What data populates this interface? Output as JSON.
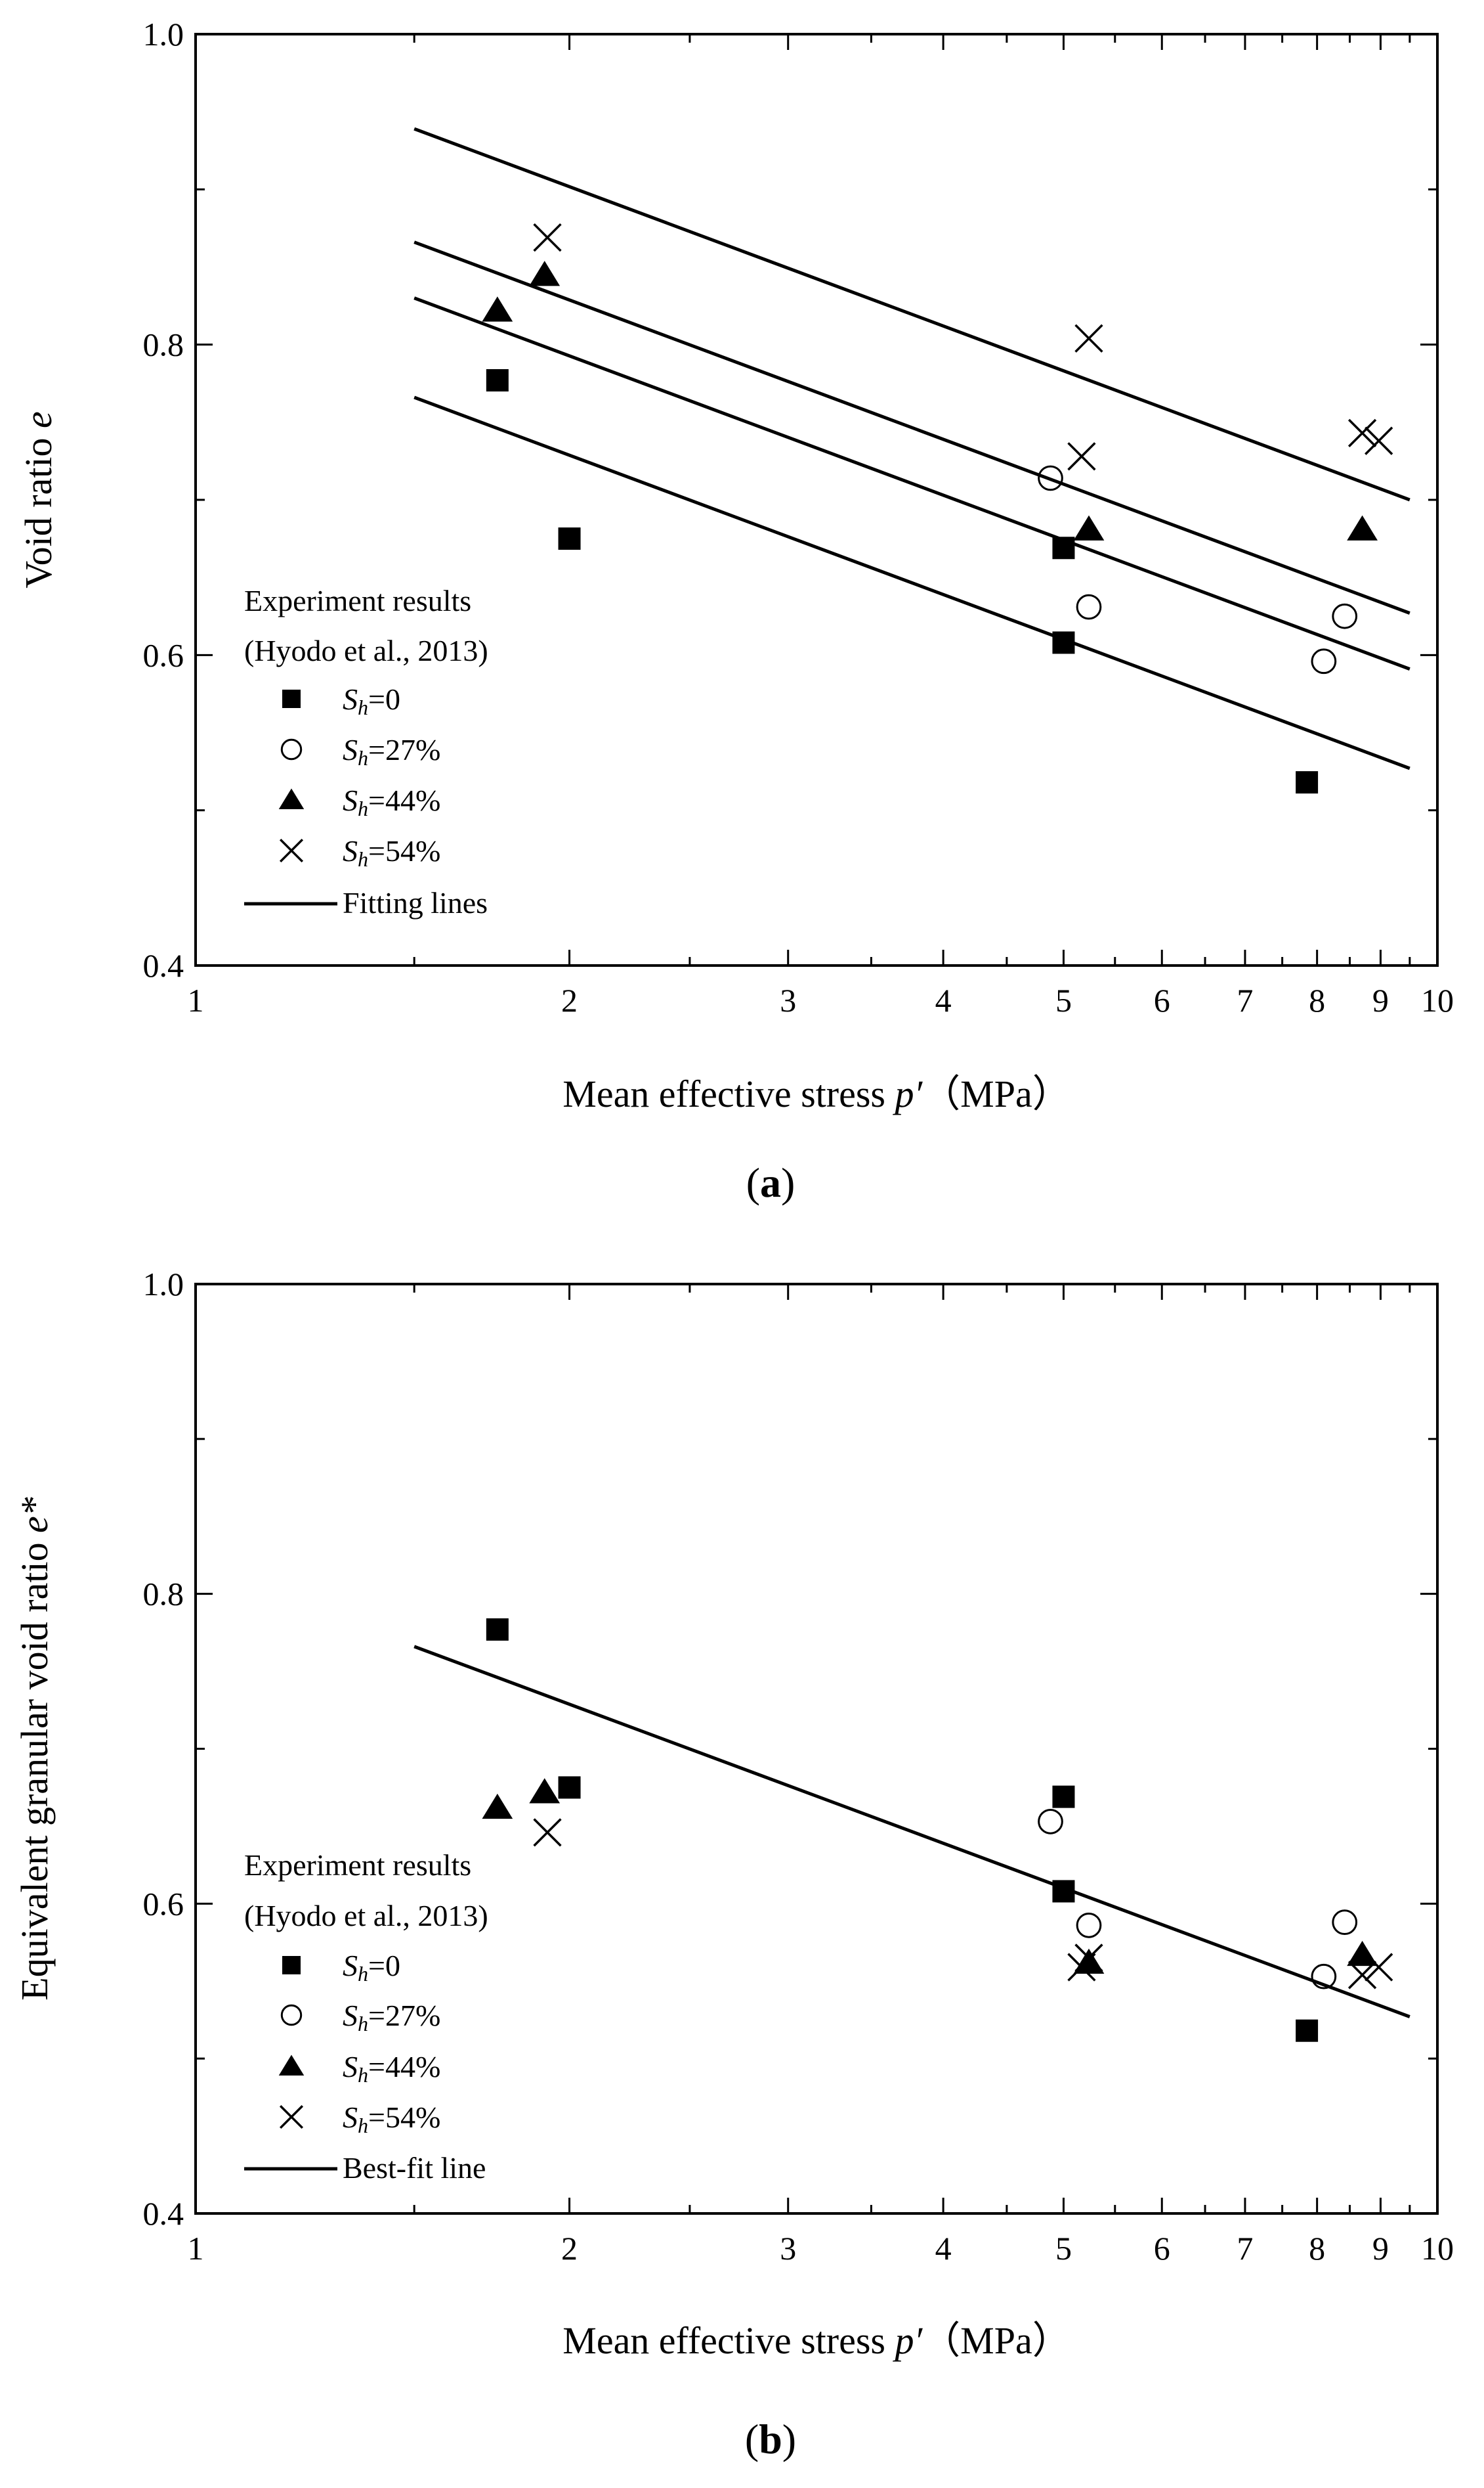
{
  "chart_data": [
    {
      "type": "scatter",
      "panel": "a",
      "xscale": "log",
      "xlim": [
        1,
        10
      ],
      "ylim": [
        0.4,
        1.0
      ],
      "xlabel_prefix": "Mean effective stress ",
      "xlabel_var": "p′",
      "xlabel_unit": "（MPa）",
      "ylabel_prefix": "Void ratio ",
      "ylabel_var": "e",
      "xticks": [
        {
          "v": 1,
          "label": "1"
        },
        {
          "v": 2,
          "label": "2"
        },
        {
          "v": 3,
          "label": "3"
        },
        {
          "v": 4,
          "label": "4"
        },
        {
          "v": 5,
          "label": "5"
        },
        {
          "v": 6,
          "label": "6"
        },
        {
          "v": 7,
          "label": "7"
        },
        {
          "v": 8,
          "label": "8"
        },
        {
          "v": 9,
          "label": "9"
        },
        {
          "v": 10,
          "label": "10"
        }
      ],
      "yticks": [
        {
          "v": 0.4,
          "label": "0.4"
        },
        {
          "v": 0.6,
          "label": "0.6"
        },
        {
          "v": 0.8,
          "label": "0.8"
        },
        {
          "v": 1.0,
          "label": "1.0"
        }
      ],
      "legend": {
        "title_line1": "Experiment results",
        "title_line2": "(Hyodo et al., 2013)",
        "entries": [
          {
            "marker": "square",
            "sym": "S",
            "sub": "h",
            "rest": "=0"
          },
          {
            "marker": "circle",
            "sym": "S",
            "sub": "h",
            "rest": "=27%"
          },
          {
            "marker": "triangle",
            "sym": "S",
            "sub": "h",
            "rest": "=44%"
          },
          {
            "marker": "cross",
            "sym": "S",
            "sub": "h",
            "rest": "=54%"
          },
          {
            "marker": "line",
            "label": "Fitting lines"
          }
        ]
      },
      "series": [
        {
          "name": "Sh=0",
          "marker": "square",
          "points": [
            [
              1.75,
              0.777
            ],
            [
              2.0,
              0.675
            ],
            [
              5.0,
              0.669
            ],
            [
              5.0,
              0.608
            ],
            [
              7.85,
              0.518
            ]
          ]
        },
        {
          "name": "Sh=27%",
          "marker": "circle",
          "points": [
            [
              4.88,
              0.714
            ],
            [
              5.24,
              0.631
            ],
            [
              8.1,
              0.596
            ],
            [
              8.42,
              0.625
            ]
          ]
        },
        {
          "name": "Sh=44%",
          "marker": "triangle",
          "points": [
            [
              1.75,
              0.822
            ],
            [
              1.91,
              0.845
            ],
            [
              5.24,
              0.681
            ],
            [
              8.7,
              0.681
            ]
          ]
        },
        {
          "name": "Sh=54%",
          "marker": "cross",
          "points": [
            [
              1.92,
              0.869
            ],
            [
              5.17,
              0.728
            ],
            [
              5.24,
              0.804
            ],
            [
              8.7,
              0.743
            ],
            [
              8.97,
              0.738
            ]
          ]
        }
      ],
      "lines": [
        {
          "name": "Fitting line Sh=54%",
          "x": [
            1.5,
            9.5
          ],
          "y": [
            0.939,
            0.7
          ]
        },
        {
          "name": "Fitting line Sh=44%",
          "x": [
            1.5,
            9.5
          ],
          "y": [
            0.866,
            0.627
          ]
        },
        {
          "name": "Fitting line Sh=27%",
          "x": [
            1.5,
            9.5
          ],
          "y": [
            0.83,
            0.591
          ]
        },
        {
          "name": "Fitting line Sh=0",
          "x": [
            1.5,
            9.5
          ],
          "y": [
            0.766,
            0.527
          ]
        }
      ],
      "caption_open": "(",
      "caption_letter": "a",
      "caption_close": ")"
    },
    {
      "type": "scatter",
      "panel": "b",
      "xscale": "log",
      "xlim": [
        1,
        10
      ],
      "ylim": [
        0.4,
        1.0
      ],
      "xlabel_prefix": "Mean effective stress ",
      "xlabel_var": "p′",
      "xlabel_unit": "（MPa）",
      "ylabel_prefix": "Equivalent granular void ratio ",
      "ylabel_var": "e*",
      "xticks": [
        {
          "v": 1,
          "label": "1"
        },
        {
          "v": 2,
          "label": "2"
        },
        {
          "v": 3,
          "label": "3"
        },
        {
          "v": 4,
          "label": "4"
        },
        {
          "v": 5,
          "label": "5"
        },
        {
          "v": 6,
          "label": "6"
        },
        {
          "v": 7,
          "label": "7"
        },
        {
          "v": 8,
          "label": "8"
        },
        {
          "v": 9,
          "label": "9"
        },
        {
          "v": 10,
          "label": "10"
        }
      ],
      "yticks": [
        {
          "v": 0.4,
          "label": "0.4"
        },
        {
          "v": 0.6,
          "label": "0.6"
        },
        {
          "v": 0.8,
          "label": "0.8"
        },
        {
          "v": 1.0,
          "label": "1.0"
        }
      ],
      "legend": {
        "title_line1": "Experiment results",
        "title_line2": "(Hyodo et al., 2013)",
        "entries": [
          {
            "marker": "square",
            "sym": "S",
            "sub": "h",
            "rest": "=0"
          },
          {
            "marker": "circle",
            "sym": "S",
            "sub": "h",
            "rest": "=27%"
          },
          {
            "marker": "triangle",
            "sym": "S",
            "sub": "h",
            "rest": "=44%"
          },
          {
            "marker": "cross",
            "sym": "S",
            "sub": "h",
            "rest": "=54%"
          },
          {
            "marker": "line",
            "label": "Best-fit line"
          }
        ]
      },
      "series": [
        {
          "name": "Sh=0",
          "marker": "square",
          "points": [
            [
              1.75,
              0.777
            ],
            [
              2.0,
              0.675
            ],
            [
              5.0,
              0.669
            ],
            [
              5.0,
              0.608
            ],
            [
              7.85,
              0.518
            ]
          ]
        },
        {
          "name": "Sh=27%",
          "marker": "circle",
          "points": [
            [
              4.88,
              0.653
            ],
            [
              5.24,
              0.586
            ],
            [
              8.1,
              0.553
            ],
            [
              8.42,
              0.588
            ]
          ]
        },
        {
          "name": "Sh=44%",
          "marker": "triangle",
          "points": [
            [
              1.75,
              0.662
            ],
            [
              1.91,
              0.672
            ],
            [
              5.24,
              0.562
            ],
            [
              8.7,
              0.567
            ]
          ]
        },
        {
          "name": "Sh=54%",
          "marker": "cross",
          "points": [
            [
              1.92,
              0.646
            ],
            [
              5.17,
              0.559
            ],
            [
              5.24,
              0.565
            ],
            [
              8.7,
              0.554
            ],
            [
              8.97,
              0.559
            ]
          ]
        }
      ],
      "lines": [
        {
          "name": "Best-fit line",
          "x": [
            1.5,
            9.5
          ],
          "y": [
            0.766,
            0.527
          ]
        }
      ],
      "caption_open": "(",
      "caption_letter": "b",
      "caption_close": ")"
    }
  ]
}
